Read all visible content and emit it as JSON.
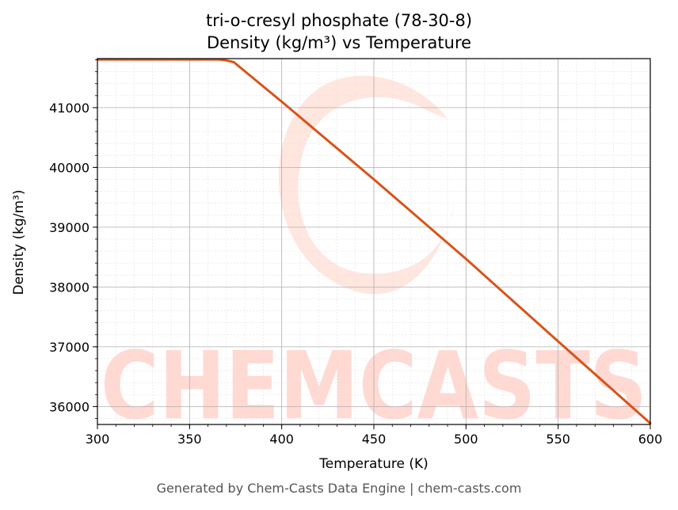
{
  "chart_data": {
    "type": "line",
    "title": "tri-o-cresyl phosphate (78-30-8)",
    "subtitle": "Density (kg/m³) vs Temperature",
    "xlabel": "Temperature (K)",
    "ylabel": "Density (kg/m³)",
    "xlim": [
      300,
      600
    ],
    "ylim": [
      35700,
      41820
    ],
    "x_ticks": [
      300,
      350,
      400,
      450,
      500,
      550,
      600
    ],
    "y_ticks": [
      36000,
      37000,
      38000,
      39000,
      40000,
      41000
    ],
    "grid": true,
    "series": [
      {
        "color": "#d95319",
        "x": [
          300,
          350,
          366,
          370,
          374,
          400,
          450,
          500,
          550,
          600
        ],
        "y": [
          41805,
          41805,
          41805,
          41790,
          41760,
          41100,
          39800,
          38470,
          37090,
          35720
        ]
      }
    ]
  },
  "watermark": {
    "text": "CHEMCASTS",
    "color": "#ffd9d2"
  },
  "footer": "Generated by Chem-Casts Data Engine | chem-casts.com"
}
